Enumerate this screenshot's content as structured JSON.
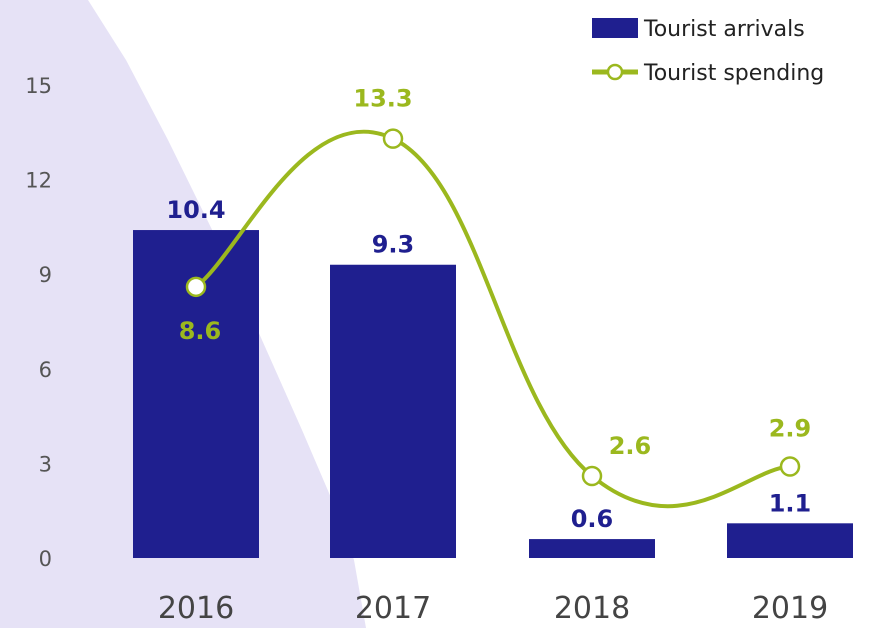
{
  "chart_data": {
    "type": "bar",
    "categories": [
      "2016",
      "2017",
      "2018",
      "2019"
    ],
    "ylim": [
      0,
      15
    ],
    "yticks": [
      0,
      3,
      6,
      9,
      12,
      15
    ],
    "grid": false,
    "legend_position": "top-right",
    "series": [
      {
        "name": "Tourist arrivals",
        "type": "bar",
        "values": [
          10.4,
          9.3,
          0.6,
          1.1
        ],
        "labels": [
          "10.4",
          "9.3",
          "0.6",
          "1.1"
        ],
        "color": "#1f1f8f"
      },
      {
        "name": "Tourist spending",
        "type": "line",
        "smooth": true,
        "values": [
          8.6,
          13.3,
          2.6,
          2.9
        ],
        "labels": [
          "8.6",
          "13.3",
          "2.6",
          "2.9"
        ],
        "color": "#9bb81e"
      }
    ]
  },
  "colors": {
    "background_shape": "#e6e2f6",
    "axis_text": "#555555",
    "category_text": "#444444",
    "marker_fill": "#ffffff"
  }
}
